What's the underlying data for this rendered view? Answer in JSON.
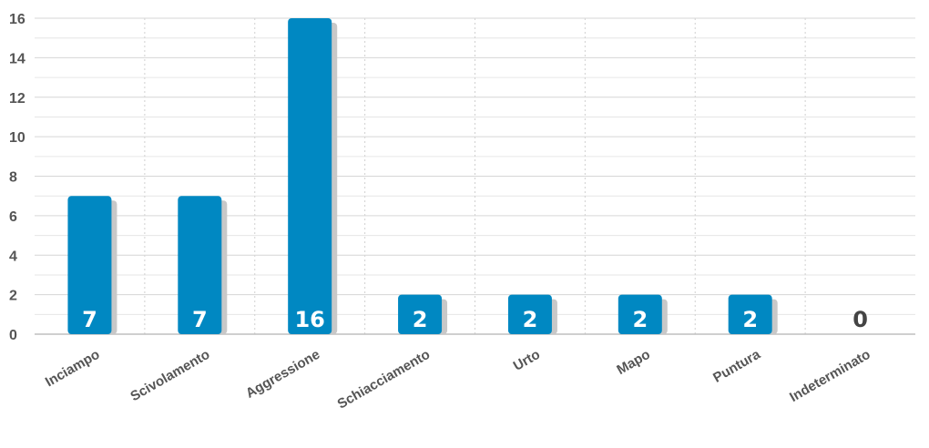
{
  "chart_data": {
    "type": "bar",
    "categories": [
      "Inciampo",
      "Scivolamento",
      "Aggressione",
      "Schiacciamento",
      "Urto",
      "Mapo",
      "Puntura",
      "Indeterminato"
    ],
    "values": [
      7,
      7,
      16,
      2,
      2,
      2,
      2,
      0
    ],
    "ylim": [
      0,
      16
    ],
    "yticks": [
      0,
      2,
      4,
      6,
      8,
      10,
      12,
      14,
      16
    ],
    "grid": true,
    "legend": "none"
  },
  "colors": {
    "bar": "#0088c2",
    "bar_shadow": "#c8c8c8",
    "grid_major": "#d6d6d6",
    "grid_minor": "#e6e6e6",
    "grid_vertical": "#d0d0d0",
    "axis": "#bfbfbf"
  }
}
